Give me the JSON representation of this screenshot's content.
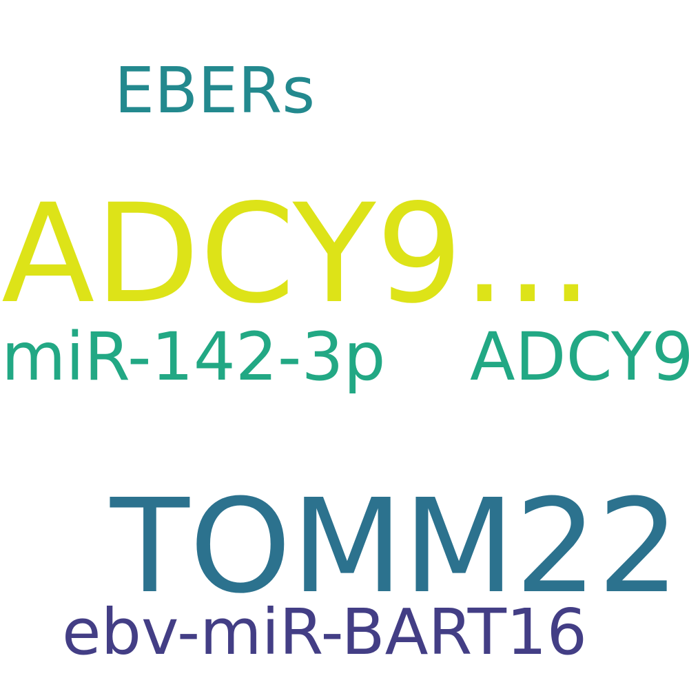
{
  "words": [
    {
      "text": "EBERs",
      "color": "#23898e"
    },
    {
      "text": "ADCY9...",
      "color": "#dde318"
    },
    {
      "text": "miR-142-3p",
      "color": "#22a884"
    },
    {
      "text": "ADCY9",
      "color": "#22a884"
    },
    {
      "text": "TOMM22",
      "color": "#2c728e"
    },
    {
      "text": "ebv-miR-BART16",
      "color": "#433e85"
    }
  ]
}
